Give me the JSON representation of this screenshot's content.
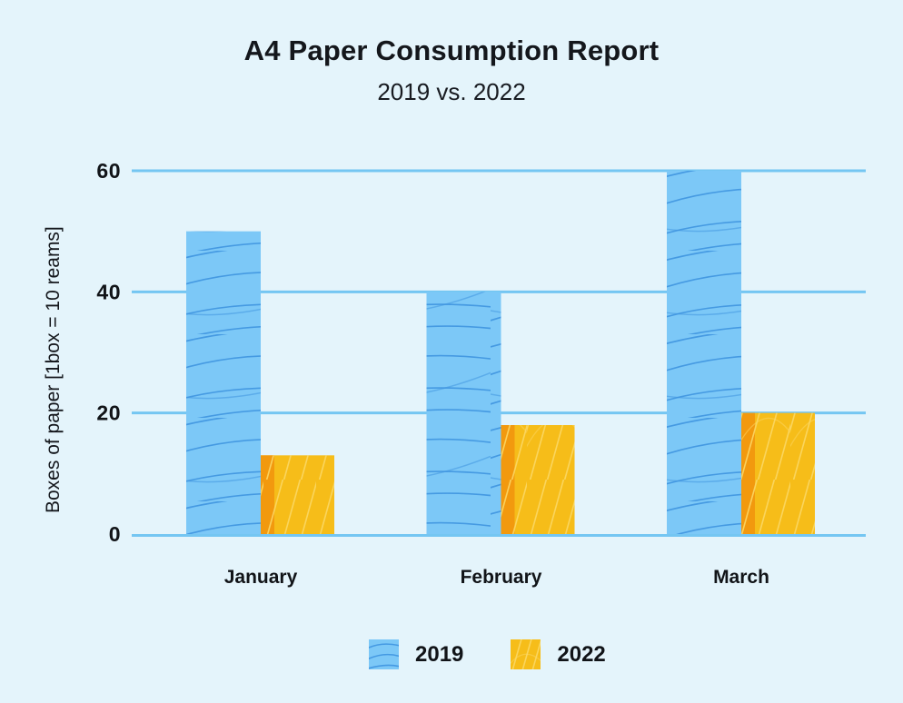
{
  "header": {
    "title": "A4 Paper Consumption Report",
    "subtitle": "2019 vs. 2022"
  },
  "chart_data": {
    "type": "bar",
    "title": "A4 Paper Consumption Report",
    "subtitle": "2019 vs. 2022",
    "categories": [
      "January",
      "February",
      "March"
    ],
    "series": [
      {
        "name": "2019",
        "values": [
          50,
          40,
          60
        ]
      },
      {
        "name": "2022",
        "values": [
          13,
          18,
          20
        ]
      }
    ],
    "xlabel": "",
    "ylabel": "Boxes of paper [1box = 10 reams]",
    "yticks": [
      0,
      20,
      40,
      60
    ],
    "ylim": [
      0,
      60
    ],
    "grid": true,
    "legend_position": "bottom",
    "colors": {
      "background": "#e4f4fb",
      "grid": "#74c6f2",
      "text": "#111418",
      "bar_2019": "#7cc8f7",
      "bar_2019_stroke": "#3f95e0",
      "bar_2022": "#f6bd19",
      "bar_2022_shadow": "#f2990e",
      "bar_2022_stroke": "#fbd765"
    }
  }
}
